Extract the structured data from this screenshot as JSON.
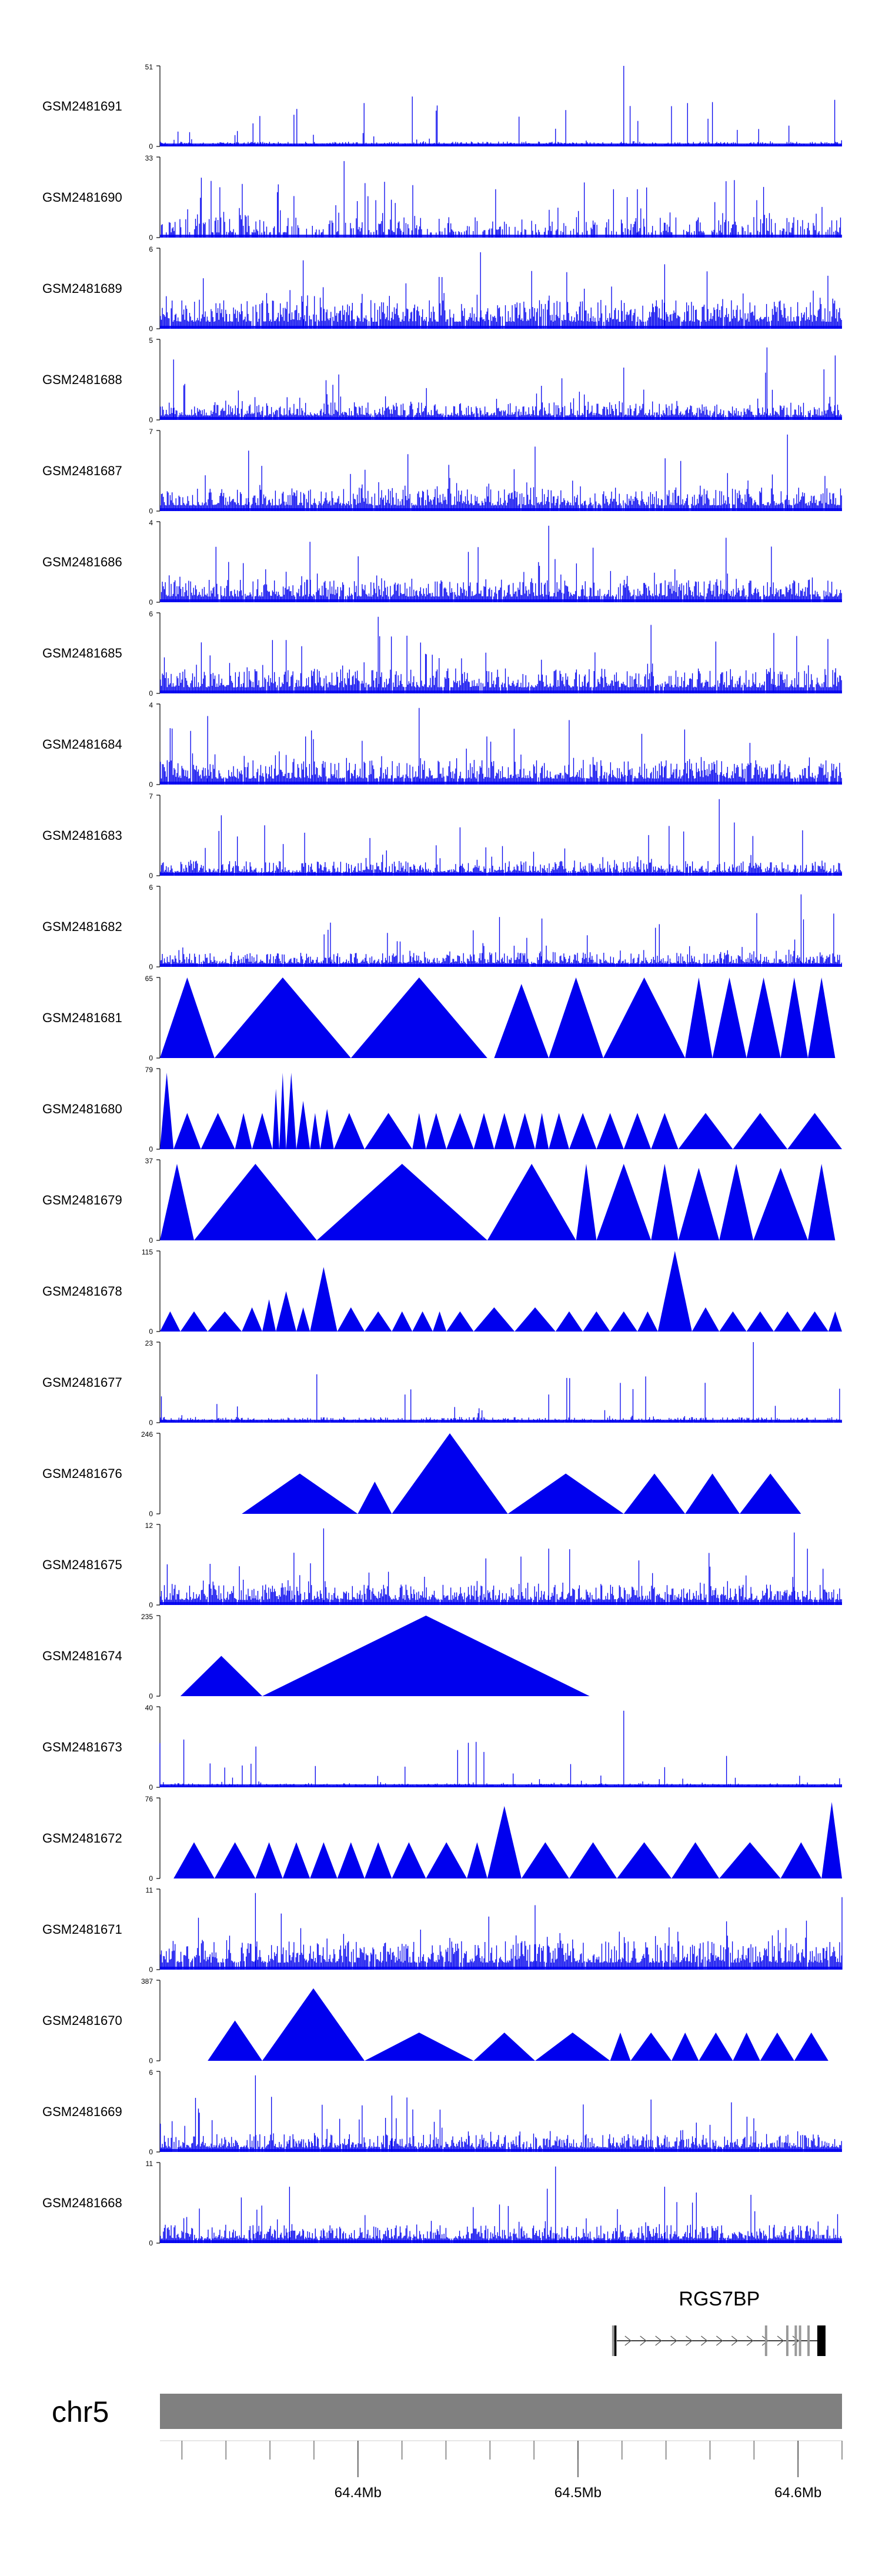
{
  "colors": {
    "signal": "#0000ee",
    "axis": "#000000",
    "chrom_bar": "#808080",
    "gene": "#000000",
    "gene_box": "#999999"
  },
  "chart_data": {
    "type": "area",
    "title": "",
    "xlabel": "",
    "ylabel": "",
    "xlim": [
      64.31,
      64.62
    ],
    "x_ticks": [
      {
        "value": 64.4,
        "label": "64.4Mb"
      },
      {
        "value": 64.5,
        "label": "64.5Mb"
      },
      {
        "value": 64.6,
        "label": "64.6Mb"
      }
    ],
    "minor_tick_step": 0.02,
    "chromosome": "chr5",
    "gene": {
      "name": "RGS7BP",
      "start": 64.516,
      "end": 64.6125,
      "strand": "+"
    },
    "tracks": [
      {
        "name": "GSM2481691",
        "ymax": "51",
        "style": "noise",
        "density": 1.0,
        "base": 0.06,
        "peaks": [
          [
            0.37,
            0.62
          ],
          [
            0.68,
            1.0
          ],
          [
            0.75,
            0.5
          ],
          [
            0.81,
            0.55
          ],
          [
            0.58,
            0.22
          ],
          [
            0.11,
            0.14
          ]
        ]
      },
      {
        "name": "GSM2481690",
        "ymax": "33",
        "style": "mixed",
        "density": 0.55,
        "base": 0.25,
        "peaks": [
          [
            0.27,
            0.95
          ],
          [
            0.7,
            0.6
          ],
          [
            0.83,
            0.7
          ]
        ]
      },
      {
        "name": "GSM2481689",
        "ymax": "6",
        "style": "noise",
        "density": 0.95,
        "base": 0.35,
        "peaks": [
          [
            0.47,
            0.95
          ],
          [
            0.21,
            0.85
          ],
          [
            0.74,
            0.8
          ]
        ]
      },
      {
        "name": "GSM2481688",
        "ymax": "5",
        "style": "noise",
        "density": 0.95,
        "base": 0.22,
        "peaks": [
          [
            0.68,
            0.65
          ],
          [
            0.89,
            0.9
          ],
          [
            0.99,
            0.8
          ],
          [
            0.02,
            0.75
          ]
        ]
      },
      {
        "name": "GSM2481687",
        "ymax": "7",
        "style": "noise",
        "density": 0.95,
        "base": 0.28,
        "peaks": [
          [
            0.92,
            0.95
          ],
          [
            0.55,
            0.8
          ],
          [
            0.13,
            0.75
          ]
        ]
      },
      {
        "name": "GSM2481686",
        "ymax": "4",
        "style": "noise",
        "density": 0.95,
        "base": 0.28,
        "peaks": [
          [
            0.57,
            0.95
          ],
          [
            0.22,
            0.75
          ],
          [
            0.83,
            0.8
          ]
        ]
      },
      {
        "name": "GSM2481685",
        "ymax": "6",
        "style": "noise",
        "density": 0.95,
        "base": 0.3,
        "peaks": [
          [
            0.32,
            0.95
          ],
          [
            0.72,
            0.85
          ],
          [
            0.9,
            0.75
          ]
        ]
      },
      {
        "name": "GSM2481684",
        "ymax": "4",
        "style": "noise",
        "density": 0.95,
        "base": 0.3,
        "peaks": [
          [
            0.38,
            0.95
          ],
          [
            0.07,
            0.85
          ],
          [
            0.6,
            0.8
          ]
        ]
      },
      {
        "name": "GSM2481683",
        "ymax": "7",
        "style": "noise",
        "density": 0.95,
        "base": 0.18,
        "peaks": [
          [
            0.82,
            0.95
          ],
          [
            0.09,
            0.75
          ],
          [
            0.44,
            0.6
          ]
        ]
      },
      {
        "name": "GSM2481682",
        "ymax": "6",
        "style": "noise",
        "density": 0.95,
        "base": 0.18,
        "peaks": [
          [
            0.94,
            0.9
          ],
          [
            0.56,
            0.6
          ],
          [
            0.25,
            0.55
          ]
        ]
      },
      {
        "name": "GSM2481681",
        "ymax": "65",
        "style": "triangles",
        "tri": [
          [
            0.0,
            0.08,
            1.0
          ],
          [
            0.08,
            0.28,
            1.0
          ],
          [
            0.28,
            0.48,
            1.0
          ],
          [
            0.49,
            0.57,
            0.92
          ],
          [
            0.57,
            0.65,
            1.0
          ],
          [
            0.65,
            0.77,
            1.0
          ],
          [
            0.77,
            0.81,
            1.0
          ],
          [
            0.81,
            0.86,
            1.0
          ],
          [
            0.86,
            0.91,
            1.0
          ],
          [
            0.91,
            0.95,
            1.0
          ],
          [
            0.95,
            0.99,
            1.0
          ]
        ]
      },
      {
        "name": "GSM2481680",
        "ymax": "79",
        "style": "triangles",
        "tri": [
          [
            0.0,
            0.02,
            0.95
          ],
          [
            0.02,
            0.06,
            0.45
          ],
          [
            0.06,
            0.11,
            0.45
          ],
          [
            0.11,
            0.135,
            0.45
          ],
          [
            0.135,
            0.165,
            0.45
          ],
          [
            0.165,
            0.175,
            0.75
          ],
          [
            0.175,
            0.185,
            0.95
          ],
          [
            0.185,
            0.2,
            0.95
          ],
          [
            0.2,
            0.22,
            0.6
          ],
          [
            0.22,
            0.235,
            0.45
          ],
          [
            0.235,
            0.255,
            0.5
          ],
          [
            0.255,
            0.3,
            0.45
          ],
          [
            0.3,
            0.37,
            0.45
          ],
          [
            0.37,
            0.39,
            0.45
          ],
          [
            0.39,
            0.42,
            0.45
          ],
          [
            0.42,
            0.46,
            0.45
          ],
          [
            0.46,
            0.49,
            0.45
          ],
          [
            0.49,
            0.52,
            0.45
          ],
          [
            0.52,
            0.55,
            0.45
          ],
          [
            0.55,
            0.57,
            0.45
          ],
          [
            0.57,
            0.6,
            0.45
          ],
          [
            0.6,
            0.64,
            0.45
          ],
          [
            0.64,
            0.68,
            0.45
          ],
          [
            0.68,
            0.72,
            0.45
          ],
          [
            0.72,
            0.76,
            0.45
          ],
          [
            0.76,
            0.84,
            0.45
          ],
          [
            0.84,
            0.92,
            0.45
          ],
          [
            0.92,
            1.0,
            0.45
          ]
        ]
      },
      {
        "name": "GSM2481679",
        "ymax": "37",
        "style": "triangles",
        "tri": [
          [
            0.0,
            0.05,
            0.95
          ],
          [
            0.05,
            0.23,
            0.95
          ],
          [
            0.23,
            0.48,
            0.95
          ],
          [
            0.48,
            0.61,
            0.95
          ],
          [
            0.61,
            0.64,
            0.95
          ],
          [
            0.64,
            0.72,
            0.95
          ],
          [
            0.72,
            0.76,
            0.95
          ],
          [
            0.76,
            0.82,
            0.9
          ],
          [
            0.82,
            0.87,
            0.95
          ],
          [
            0.87,
            0.95,
            0.9
          ],
          [
            0.95,
            0.99,
            0.95
          ]
        ]
      },
      {
        "name": "GSM2481678",
        "ymax": "115",
        "style": "triangles",
        "tri": [
          [
            0.0,
            0.03,
            0.25
          ],
          [
            0.03,
            0.07,
            0.25
          ],
          [
            0.07,
            0.12,
            0.25
          ],
          [
            0.12,
            0.15,
            0.3
          ],
          [
            0.15,
            0.17,
            0.4
          ],
          [
            0.17,
            0.2,
            0.5
          ],
          [
            0.2,
            0.22,
            0.3
          ],
          [
            0.22,
            0.26,
            0.8
          ],
          [
            0.26,
            0.3,
            0.3
          ],
          [
            0.3,
            0.34,
            0.25
          ],
          [
            0.34,
            0.37,
            0.25
          ],
          [
            0.37,
            0.4,
            0.25
          ],
          [
            0.4,
            0.42,
            0.25
          ],
          [
            0.42,
            0.46,
            0.25
          ],
          [
            0.46,
            0.52,
            0.3
          ],
          [
            0.52,
            0.58,
            0.3
          ],
          [
            0.58,
            0.62,
            0.25
          ],
          [
            0.62,
            0.66,
            0.25
          ],
          [
            0.66,
            0.7,
            0.25
          ],
          [
            0.7,
            0.73,
            0.25
          ],
          [
            0.73,
            0.78,
            1.0
          ],
          [
            0.78,
            0.82,
            0.3
          ],
          [
            0.82,
            0.86,
            0.25
          ],
          [
            0.86,
            0.9,
            0.25
          ],
          [
            0.9,
            0.94,
            0.25
          ],
          [
            0.94,
            0.98,
            0.25
          ],
          [
            0.98,
            1.0,
            0.25
          ]
        ]
      },
      {
        "name": "GSM2481677",
        "ymax": "23",
        "style": "noise",
        "density": 0.95,
        "base": 0.07,
        "peaks": [
          [
            0.87,
            1.0
          ],
          [
            0.23,
            0.6
          ],
          [
            0.57,
            0.35
          ]
        ]
      },
      {
        "name": "GSM2481676",
        "ymax": "246",
        "style": "triangles",
        "tri": [
          [
            0.12,
            0.29,
            0.5
          ],
          [
            0.29,
            0.34,
            0.4
          ],
          [
            0.34,
            0.51,
            1.0
          ],
          [
            0.51,
            0.68,
            0.5
          ],
          [
            0.68,
            0.77,
            0.5
          ],
          [
            0.77,
            0.85,
            0.5
          ],
          [
            0.85,
            0.94,
            0.5
          ]
        ]
      },
      {
        "name": "GSM2481675",
        "ymax": "12",
        "style": "noise",
        "density": 0.95,
        "base": 0.25,
        "peaks": [
          [
            0.24,
            0.95
          ],
          [
            0.93,
            0.9
          ],
          [
            0.57,
            0.7
          ]
        ]
      },
      {
        "name": "GSM2481674",
        "ymax": "235",
        "style": "triangles",
        "tri": [
          [
            0.03,
            0.15,
            0.5
          ],
          [
            0.15,
            0.63,
            1.0
          ]
        ]
      },
      {
        "name": "GSM2481673",
        "ymax": "40",
        "style": "noise",
        "density": 1.0,
        "base": 0.05,
        "peaks": [
          [
            0.68,
            0.95
          ],
          [
            0.74,
            0.25
          ],
          [
            0.0,
            0.55
          ]
        ]
      },
      {
        "name": "GSM2481672",
        "ymax": "76",
        "style": "triangles",
        "tri": [
          [
            0.02,
            0.08,
            0.45
          ],
          [
            0.08,
            0.14,
            0.45
          ],
          [
            0.14,
            0.18,
            0.45
          ],
          [
            0.18,
            0.22,
            0.45
          ],
          [
            0.22,
            0.26,
            0.45
          ],
          [
            0.26,
            0.3,
            0.45
          ],
          [
            0.3,
            0.34,
            0.45
          ],
          [
            0.34,
            0.39,
            0.45
          ],
          [
            0.39,
            0.45,
            0.45
          ],
          [
            0.45,
            0.48,
            0.45
          ],
          [
            0.48,
            0.53,
            0.9
          ],
          [
            0.53,
            0.6,
            0.45
          ],
          [
            0.6,
            0.67,
            0.45
          ],
          [
            0.67,
            0.75,
            0.45
          ],
          [
            0.75,
            0.82,
            0.45
          ],
          [
            0.82,
            0.91,
            0.45
          ],
          [
            0.91,
            0.97,
            0.45
          ],
          [
            0.97,
            1.0,
            0.95
          ]
        ]
      },
      {
        "name": "GSM2481671",
        "ymax": "11",
        "style": "noise",
        "density": 0.95,
        "base": 0.35,
        "peaks": [
          [
            0.14,
            0.95
          ],
          [
            1.0,
            0.9
          ],
          [
            0.55,
            0.8
          ]
        ]
      },
      {
        "name": "GSM2481670",
        "ymax": "387",
        "style": "triangles",
        "tri": [
          [
            0.07,
            0.15,
            0.5
          ],
          [
            0.15,
            0.3,
            0.9
          ],
          [
            0.3,
            0.46,
            0.35
          ],
          [
            0.46,
            0.55,
            0.35
          ],
          [
            0.55,
            0.66,
            0.35
          ],
          [
            0.66,
            0.69,
            0.35
          ],
          [
            0.69,
            0.75,
            0.35
          ],
          [
            0.75,
            0.79,
            0.35
          ],
          [
            0.79,
            0.84,
            0.35
          ],
          [
            0.84,
            0.88,
            0.35
          ],
          [
            0.88,
            0.93,
            0.35
          ],
          [
            0.93,
            0.98,
            0.35
          ]
        ]
      },
      {
        "name": "GSM2481669",
        "ymax": "6",
        "style": "noise",
        "density": 0.95,
        "base": 0.22,
        "peaks": [
          [
            0.14,
            0.95
          ],
          [
            0.34,
            0.7
          ],
          [
            0.72,
            0.65
          ]
        ]
      },
      {
        "name": "GSM2481668",
        "ymax": "11",
        "style": "noise",
        "density": 0.95,
        "base": 0.22,
        "peaks": [
          [
            0.58,
            0.95
          ],
          [
            0.19,
            0.7
          ],
          [
            0.74,
            0.7
          ]
        ]
      }
    ]
  }
}
